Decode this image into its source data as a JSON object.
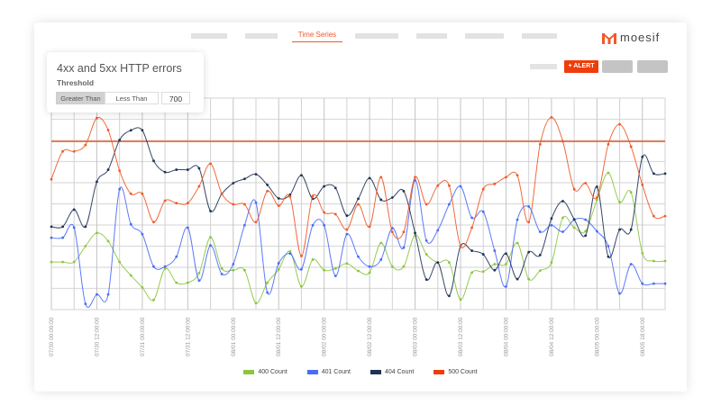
{
  "nav": {
    "active_tab": "Time Series"
  },
  "brand": {
    "name": "moesif",
    "color": "#f05a28"
  },
  "toolbar": {
    "alert_label": "+ ALERT"
  },
  "popup": {
    "title": "4xx and 5xx HTTP errors",
    "threshold_label": "Threshold",
    "options": [
      "Greater Than",
      "Less Than"
    ],
    "selected_option": "Greater Than",
    "threshold_value": "700"
  },
  "colors": {
    "accent": "#f05a28",
    "alert": "#f03c0a"
  },
  "chart_data": {
    "type": "line",
    "title": "",
    "xlabel": "",
    "ylabel": "",
    "ylim": [
      0,
      880
    ],
    "grid": true,
    "legend_placement": "bottom",
    "x_start": "07/30 00:00",
    "x_step_hours": 3,
    "tick_labels": [
      "07/30 00:00:00",
      "07/30 12:00:00",
      "07/31 00:00:00",
      "07/31 12:00:00",
      "08/01 00:00:00",
      "08/01 12:00:00",
      "08/02 00:00:00",
      "08/02 12:00:00",
      "08/03 00:00:00",
      "08/03 12:00:00",
      "08/04 00:00:00",
      "08/04 12:00:00",
      "08/05 00:00:00",
      "08/05 18:00:00"
    ],
    "threshold": 700,
    "threshold_color": "#f05a28",
    "series": [
      {
        "name": "400 Count",
        "color": "#8cc63f",
        "values": [
          198,
          198,
          198,
          264,
          319,
          285,
          198,
          142,
          92,
          40,
          171,
          112,
          112,
          152,
          301,
          171,
          164,
          164,
          27,
          112,
          167,
          242,
          96,
          208,
          164,
          171,
          192,
          161,
          154,
          277,
          179,
          179,
          310,
          230,
          196,
          196,
          42,
          154,
          158,
          189,
          189,
          277,
          127,
          162,
          196,
          382,
          341,
          326,
          457,
          569,
          447,
          488,
          235,
          202,
          202
        ]
      },
      {
        "name": "401 Count",
        "color": "#4a6cf7",
        "values": [
          299,
          299,
          341,
          24,
          63,
          63,
          501,
          355,
          314,
          179,
          179,
          220,
          341,
          121,
          267,
          148,
          189,
          351,
          445,
          71,
          193,
          233,
          168,
          351,
          351,
          140,
          314,
          220,
          179,
          208,
          339,
          258,
          538,
          287,
          330,
          438,
          513,
          382,
          407,
          245,
          96,
          374,
          429,
          324,
          351,
          324,
          374,
          374,
          326,
          264,
          67,
          189,
          108,
          108,
          108
        ]
      },
      {
        "name": "404 Count",
        "color": "#1f3355",
        "values": [
          345,
          345,
          416,
          345,
          532,
          582,
          706,
          746,
          746,
          619,
          572,
          582,
          582,
          588,
          410,
          482,
          526,
          544,
          563,
          519,
          463,
          478,
          559,
          461,
          513,
          506,
          391,
          461,
          547,
          457,
          466,
          493,
          319,
          125,
          196,
          57,
          264,
          245,
          230,
          164,
          233,
          127,
          239,
          227,
          379,
          451,
          376,
          308,
          511,
          220,
          333,
          333,
          635,
          566,
          566
        ]
      },
      {
        "name": "500 Count",
        "color": "#f05a28",
        "values": [
          542,
          658,
          658,
          685,
          797,
          747,
          578,
          482,
          482,
          364,
          453,
          443,
          443,
          513,
          607,
          482,
          438,
          438,
          364,
          493,
          432,
          470,
          223,
          473,
          404,
          397,
          333,
          438,
          345,
          551,
          323,
          323,
          551,
          438,
          516,
          516,
          264,
          341,
          501,
          523,
          551,
          559,
          364,
          688,
          800,
          700,
          501,
          526,
          466,
          688,
          771,
          678,
          519,
          389,
          389
        ]
      }
    ]
  }
}
